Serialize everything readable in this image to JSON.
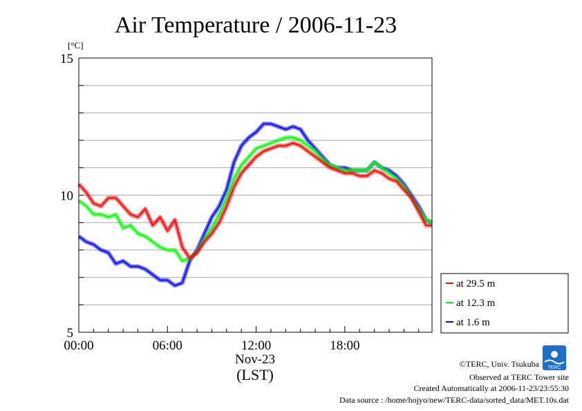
{
  "chart_data": {
    "type": "line",
    "title": "Air Temperature / 2006-11-23",
    "ylabel": "[°C]",
    "xlabel_date": "Nov-23",
    "xlabel_tz": "(LST)",
    "ylim": [
      5,
      15
    ],
    "xlim_hours": [
      0,
      23.9
    ],
    "yticks": [
      "5",
      "10",
      "15"
    ],
    "xticks": [
      {
        "h": 0,
        "label": "00:00"
      },
      {
        "h": 6,
        "label": "06:00"
      },
      {
        "h": 12,
        "label": "12:00"
      },
      {
        "h": 18,
        "label": "18:00"
      }
    ],
    "grid": true,
    "legend_position": "bottom-right, outside plot",
    "series": [
      {
        "name": "at 29.5 m",
        "color": "#ff0000",
        "x": [
          0,
          0.5,
          1,
          1.5,
          2,
          2.5,
          3,
          3.5,
          4,
          4.5,
          5,
          5.5,
          6,
          6.5,
          7,
          7.5,
          8,
          8.5,
          9,
          9.5,
          10,
          10.5,
          11,
          11.5,
          12,
          12.5,
          13,
          13.5,
          14,
          14.5,
          15,
          15.5,
          16,
          16.5,
          17,
          17.5,
          18,
          18.5,
          19,
          19.5,
          20,
          20.5,
          21,
          21.5,
          22,
          22.5,
          23,
          23.5,
          23.9
        ],
        "y": [
          10.4,
          10.1,
          9.7,
          9.6,
          9.9,
          9.9,
          9.6,
          9.3,
          9.2,
          9.5,
          8.9,
          9.2,
          8.7,
          9.1,
          8.1,
          7.7,
          7.9,
          8.3,
          8.6,
          9.0,
          9.6,
          10.3,
          10.8,
          11.1,
          11.4,
          11.6,
          11.7,
          11.8,
          11.8,
          11.9,
          11.8,
          11.6,
          11.4,
          11.2,
          11.0,
          10.9,
          10.8,
          10.8,
          10.7,
          10.7,
          10.9,
          10.8,
          10.6,
          10.5,
          10.2,
          9.9,
          9.4,
          8.9,
          8.9
        ]
      },
      {
        "name": "at 12.3 m",
        "color": "#00ff00",
        "x": [
          0,
          0.5,
          1,
          1.5,
          2,
          2.5,
          3,
          3.5,
          4,
          4.5,
          5,
          5.5,
          6,
          6.5,
          7,
          7.5,
          8,
          8.5,
          9,
          9.5,
          10,
          10.5,
          11,
          11.5,
          12,
          12.5,
          13,
          13.5,
          14,
          14.5,
          15,
          15.5,
          16,
          16.5,
          17,
          17.5,
          18,
          18.5,
          19,
          19.5,
          20,
          20.5,
          21,
          21.5,
          22,
          22.5,
          23,
          23.5,
          23.9
        ],
        "y": [
          9.8,
          9.6,
          9.3,
          9.3,
          9.2,
          9.3,
          8.8,
          8.9,
          8.6,
          8.5,
          8.3,
          8.1,
          8.0,
          8.0,
          7.6,
          7.7,
          7.9,
          8.4,
          8.8,
          9.3,
          9.9,
          10.6,
          11.1,
          11.4,
          11.7,
          11.8,
          11.9,
          12.0,
          12.1,
          12.1,
          12.0,
          11.8,
          11.6,
          11.3,
          11.1,
          11.0,
          10.9,
          10.9,
          10.9,
          10.9,
          11.2,
          11.0,
          10.8,
          10.6,
          10.3,
          9.9,
          9.5,
          9.1,
          9.0
        ]
      },
      {
        "name": "at 1.6 m",
        "color": "#0000ff",
        "x": [
          0,
          0.5,
          1,
          1.5,
          2,
          2.5,
          3,
          3.5,
          4,
          4.5,
          5,
          5.5,
          6,
          6.5,
          7,
          7.5,
          8,
          8.5,
          9,
          9.5,
          10,
          10.5,
          11,
          11.5,
          12,
          12.5,
          13,
          13.5,
          14,
          14.5,
          15,
          15.5,
          16,
          16.5,
          17,
          17.5,
          18,
          18.5,
          19,
          19.5,
          20,
          20.5,
          21,
          21.5,
          22,
          22.5,
          23,
          23.5,
          23.9
        ],
        "y": [
          8.5,
          8.3,
          8.2,
          8.0,
          7.9,
          7.5,
          7.6,
          7.4,
          7.4,
          7.3,
          7.1,
          6.9,
          6.9,
          6.7,
          6.8,
          7.6,
          8.0,
          8.6,
          9.2,
          9.6,
          10.2,
          11.2,
          11.8,
          12.1,
          12.3,
          12.6,
          12.6,
          12.5,
          12.4,
          12.5,
          12.4,
          12.0,
          11.7,
          11.4,
          11.1,
          11.0,
          11.0,
          10.9,
          10.9,
          10.9,
          11.2,
          11.0,
          10.9,
          10.7,
          10.4,
          10.0,
          9.6,
          9.1,
          9.0
        ]
      }
    ]
  },
  "footer": {
    "copyright": "©TERC, Univ. Tsukuba",
    "site": "Observed at TERC Tower site",
    "created": "Created Automatically at 2006-11-23/23:55:30",
    "source": "Data source : /home/hojyo/new/TERC-data/sorted_data/MET.10s.dat",
    "logo_text": "TERC"
  }
}
